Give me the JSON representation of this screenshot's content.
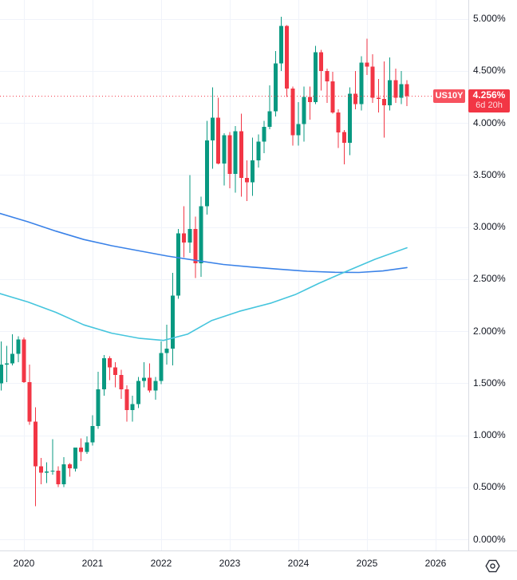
{
  "colors": {
    "background": "#ffffff",
    "up": "#089981",
    "down": "#f23645",
    "price_line": "#f23645",
    "badge_bg": "#f23645",
    "label_bg": "#f7525f",
    "ma_blue": "#3a82e8",
    "ma_cyan": "#45c5dd",
    "grid": "#f0f3fa",
    "axis_text": "#131722",
    "axis_border": "#d9dce3",
    "icon": "#2a2e39"
  },
  "chart_data": {
    "type": "candlestick",
    "symbol": "US10Y",
    "unit": "percent",
    "grid": true,
    "x_range": [
      "2019-09",
      "2025-08"
    ],
    "price_line": {
      "symbol": "US10Y",
      "value": 4.256,
      "price_label": "4.256%",
      "countdown": "6d 20h"
    },
    "y_axis": {
      "side": "right",
      "ticks": [
        {
          "label": "5.000%",
          "value": 5.0
        },
        {
          "label": "4.500%",
          "value": 4.5
        },
        {
          "label": "4.000%",
          "value": 4.0
        },
        {
          "label": "3.500%",
          "value": 3.5
        },
        {
          "label": "3.000%",
          "value": 3.0
        },
        {
          "label": "2.500%",
          "value": 2.5
        },
        {
          "label": "2.000%",
          "value": 2.0
        },
        {
          "label": "1.500%",
          "value": 1.5
        },
        {
          "label": "1.000%",
          "value": 1.0
        },
        {
          "label": "0.500%",
          "value": 0.5
        },
        {
          "label": "0.000%",
          "value": 0.0
        }
      ]
    },
    "x_axis": {
      "side": "bottom",
      "ticks": [
        "2020",
        "2021",
        "2022",
        "2023",
        "2024",
        "2025",
        "2026"
      ]
    },
    "candles": [
      [
        "2019-09",
        1.5,
        1.9,
        1.43,
        1.68
      ],
      [
        "2019-10",
        1.68,
        1.86,
        1.51,
        1.69
      ],
      [
        "2019-11",
        1.69,
        1.97,
        1.67,
        1.78
      ],
      [
        "2019-12",
        1.78,
        1.95,
        1.7,
        1.92
      ],
      [
        "2020-01",
        1.92,
        1.94,
        1.5,
        1.51
      ],
      [
        "2020-02",
        1.51,
        1.68,
        1.1,
        1.13
      ],
      [
        "2020-03",
        1.13,
        1.27,
        0.32,
        0.7
      ],
      [
        "2020-04",
        0.7,
        0.78,
        0.53,
        0.64
      ],
      [
        "2020-05",
        0.64,
        0.74,
        0.54,
        0.65
      ],
      [
        "2020-06",
        0.65,
        0.96,
        0.62,
        0.66
      ],
      [
        "2020-07",
        0.66,
        0.7,
        0.5,
        0.53
      ],
      [
        "2020-08",
        0.53,
        0.79,
        0.5,
        0.72
      ],
      [
        "2020-09",
        0.72,
        0.73,
        0.6,
        0.68
      ],
      [
        "2020-10",
        0.68,
        0.88,
        0.65,
        0.88
      ],
      [
        "2020-11",
        0.88,
        0.97,
        0.75,
        0.84
      ],
      [
        "2020-12",
        0.84,
        0.99,
        0.82,
        0.93
      ],
      [
        "2021-01",
        0.93,
        1.19,
        0.9,
        1.09
      ],
      [
        "2021-02",
        1.09,
        1.61,
        1.06,
        1.44
      ],
      [
        "2021-03",
        1.44,
        1.77,
        1.38,
        1.74
      ],
      [
        "2021-04",
        1.74,
        1.76,
        1.53,
        1.65
      ],
      [
        "2021-05",
        1.65,
        1.7,
        1.46,
        1.58
      ],
      [
        "2021-06",
        1.58,
        1.63,
        1.35,
        1.44
      ],
      [
        "2021-07",
        1.44,
        1.48,
        1.13,
        1.24
      ],
      [
        "2021-08",
        1.24,
        1.38,
        1.13,
        1.3
      ],
      [
        "2021-09",
        1.3,
        1.56,
        1.26,
        1.52
      ],
      [
        "2021-10",
        1.52,
        1.7,
        1.46,
        1.55
      ],
      [
        "2021-11",
        1.55,
        1.69,
        1.41,
        1.43
      ],
      [
        "2021-12",
        1.43,
        1.56,
        1.34,
        1.52
      ],
      [
        "2022-01",
        1.52,
        1.9,
        1.49,
        1.79
      ],
      [
        "2022-02",
        1.79,
        2.06,
        1.68,
        1.83
      ],
      [
        "2022-03",
        1.83,
        2.56,
        1.67,
        2.34
      ],
      [
        "2022-04",
        2.34,
        2.98,
        2.31,
        2.94
      ],
      [
        "2022-05",
        2.94,
        3.2,
        2.71,
        2.85
      ],
      [
        "2022-06",
        2.85,
        3.5,
        2.75,
        2.98
      ],
      [
        "2022-07",
        2.98,
        3.1,
        2.51,
        2.65
      ],
      [
        "2022-08",
        2.65,
        3.29,
        2.52,
        3.2
      ],
      [
        "2022-09",
        3.2,
        4.02,
        3.12,
        3.83
      ],
      [
        "2022-10",
        3.83,
        4.34,
        3.56,
        4.05
      ],
      [
        "2022-11",
        4.05,
        4.24,
        3.6,
        3.61
      ],
      [
        "2022-12",
        3.61,
        3.9,
        3.4,
        3.88
      ],
      [
        "2023-01",
        3.88,
        3.91,
        3.37,
        3.51
      ],
      [
        "2023-02",
        3.51,
        3.97,
        3.33,
        3.92
      ],
      [
        "2023-03",
        3.92,
        4.09,
        3.29,
        3.47
      ],
      [
        "2023-04",
        3.47,
        3.64,
        3.25,
        3.43
      ],
      [
        "2023-05",
        3.43,
        3.86,
        3.3,
        3.64
      ],
      [
        "2023-06",
        3.64,
        3.89,
        3.57,
        3.82
      ],
      [
        "2023-07",
        3.82,
        4.02,
        3.71,
        3.96
      ],
      [
        "2023-08",
        3.96,
        4.36,
        3.94,
        4.11
      ],
      [
        "2023-09",
        4.11,
        4.69,
        4.06,
        4.57
      ],
      [
        "2023-10",
        4.57,
        5.02,
        4.5,
        4.93
      ],
      [
        "2023-11",
        4.93,
        4.94,
        4.25,
        4.33
      ],
      [
        "2023-12",
        4.33,
        4.35,
        3.78,
        3.88
      ],
      [
        "2024-01",
        3.88,
        4.2,
        3.78,
        3.99
      ],
      [
        "2024-02",
        3.99,
        4.35,
        3.82,
        4.25
      ],
      [
        "2024-03",
        4.25,
        4.35,
        4.03,
        4.2
      ],
      [
        "2024-04",
        4.2,
        4.74,
        4.18,
        4.68
      ],
      [
        "2024-05",
        4.68,
        4.7,
        4.31,
        4.5
      ],
      [
        "2024-06",
        4.5,
        4.52,
        4.19,
        4.4
      ],
      [
        "2024-07",
        4.4,
        4.49,
        4.09,
        4.1
      ],
      [
        "2024-08",
        4.1,
        4.13,
        3.76,
        3.91
      ],
      [
        "2024-09",
        3.91,
        3.93,
        3.6,
        3.81
      ],
      [
        "2024-10",
        3.81,
        4.34,
        3.69,
        4.28
      ],
      [
        "2024-11",
        4.28,
        4.5,
        4.13,
        4.18
      ],
      [
        "2024-12",
        4.18,
        4.64,
        4.12,
        4.58
      ],
      [
        "2025-01",
        4.58,
        4.81,
        4.46,
        4.54
      ],
      [
        "2025-02",
        4.54,
        4.66,
        4.19,
        4.24
      ],
      [
        "2025-03",
        4.24,
        4.42,
        4.1,
        4.23
      ],
      [
        "2025-04",
        4.23,
        4.59,
        3.86,
        4.17
      ],
      [
        "2025-05",
        4.17,
        4.63,
        4.12,
        4.41
      ],
      [
        "2025-06",
        4.41,
        4.52,
        4.19,
        4.24
      ],
      [
        "2025-07",
        4.24,
        4.5,
        4.18,
        4.37
      ],
      [
        "2025-08",
        4.37,
        4.41,
        4.16,
        4.256
      ]
    ],
    "moving_averages": [
      {
        "name": "ma-line-blue",
        "color_ref": "ma_blue",
        "points": [
          [
            0,
            3.13
          ],
          [
            35,
            3.05
          ],
          [
            70,
            2.96
          ],
          [
            105,
            2.88
          ],
          [
            140,
            2.82
          ],
          [
            175,
            2.77
          ],
          [
            210,
            2.72
          ],
          [
            245,
            2.68
          ],
          [
            280,
            2.64
          ],
          [
            315,
            2.615
          ],
          [
            350,
            2.595
          ],
          [
            385,
            2.575
          ],
          [
            420,
            2.565
          ],
          [
            450,
            2.563
          ],
          [
            480,
            2.578
          ],
          [
            510,
            2.61
          ]
        ]
      },
      {
        "name": "ma-line-cyan",
        "color_ref": "ma_cyan",
        "points": [
          [
            0,
            2.36
          ],
          [
            35,
            2.28
          ],
          [
            70,
            2.18
          ],
          [
            105,
            2.06
          ],
          [
            140,
            1.98
          ],
          [
            175,
            1.93
          ],
          [
            205,
            1.91
          ],
          [
            235,
            1.97
          ],
          [
            265,
            2.1
          ],
          [
            300,
            2.19
          ],
          [
            340,
            2.27
          ],
          [
            370,
            2.35
          ],
          [
            400,
            2.46
          ],
          [
            430,
            2.56
          ],
          [
            470,
            2.69
          ],
          [
            510,
            2.8
          ]
        ]
      }
    ]
  }
}
